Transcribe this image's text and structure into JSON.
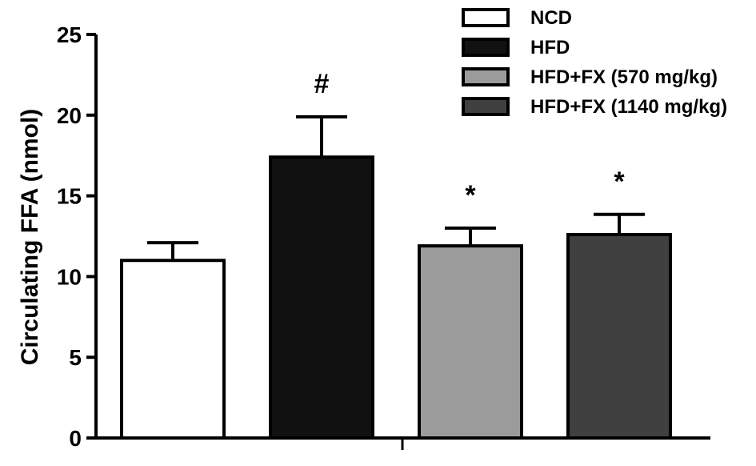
{
  "chart_data": {
    "type": "bar",
    "ylabel": "Circulating FFA (nmol)",
    "xlabel": "",
    "title": "",
    "ylim": [
      0,
      25
    ],
    "yticks": [
      0,
      5,
      10,
      15,
      20,
      25
    ],
    "grid": false,
    "legend_position": "top-right",
    "series": [
      {
        "name": "NCD",
        "value": 11.0,
        "error": 1.1,
        "fill": "#ffffff",
        "annotation": ""
      },
      {
        "name": "HFD",
        "value": 17.4,
        "error": 2.5,
        "fill": "#111111",
        "annotation": "#"
      },
      {
        "name": "HFD+FX (570 mg/kg)",
        "value": 11.9,
        "error": 1.1,
        "fill": "#9b9b9b",
        "annotation": "*"
      },
      {
        "name": "HFD+FX (1140 mg/kg)",
        "value": 12.6,
        "error": 1.25,
        "fill": "#404040",
        "annotation": "*"
      }
    ]
  }
}
